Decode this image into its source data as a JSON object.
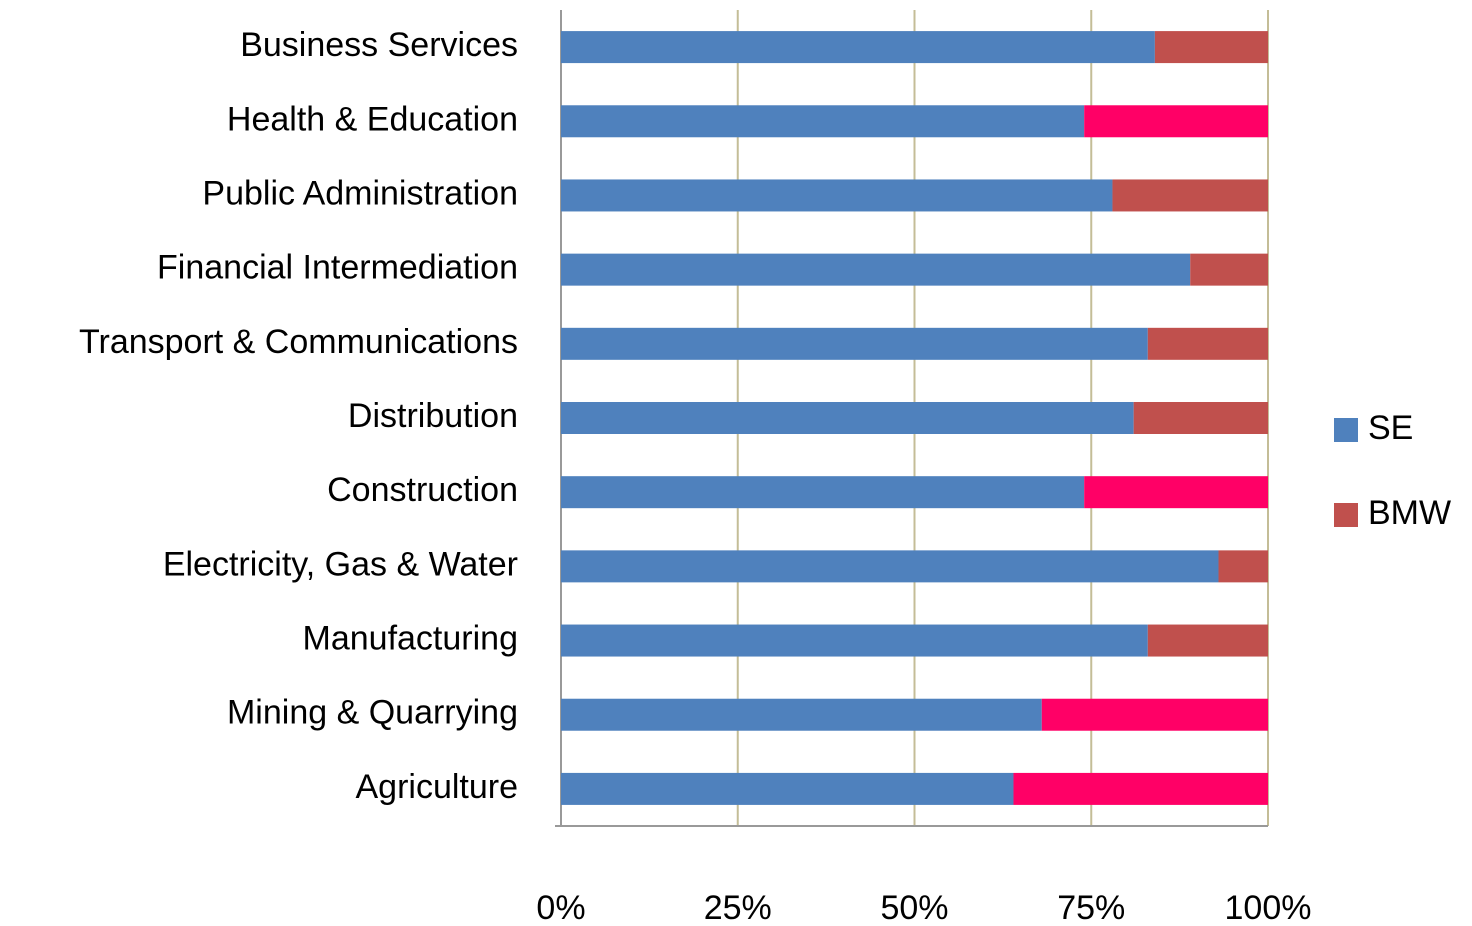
{
  "chart_data": {
    "type": "stacked_barh",
    "categories": [
      "Business Services",
      "Health & Education",
      "Public Administration",
      "Financial Intermediation",
      "Transport & Communications",
      "Distribution",
      "Construction",
      "Electricity, Gas & Water",
      "Manufacturing",
      "Mining & Quarrying",
      "Agriculture"
    ],
    "series": [
      {
        "name": "SE",
        "color": "#4f81bd",
        "values": [
          84,
          74,
          78,
          89,
          83,
          81,
          74,
          93,
          83,
          68,
          64
        ]
      },
      {
        "name": "BMW",
        "color": "#c0504d",
        "values": [
          16,
          26,
          22,
          11,
          17,
          19,
          26,
          7,
          17,
          32,
          36
        ],
        "point_colors": [
          "#c0504d",
          "#ff0066",
          "#c0504d",
          "#c0504d",
          "#c0504d",
          "#c0504d",
          "#ff0066",
          "#c0504d",
          "#c0504d",
          "#ff0066",
          "#ff0066"
        ]
      }
    ],
    "xlim": [
      0,
      100
    ],
    "xticks": [
      {
        "value": 0,
        "label": "0%"
      },
      {
        "value": 25,
        "label": "25%"
      },
      {
        "value": 50,
        "label": "50%"
      },
      {
        "value": 75,
        "label": "75%"
      },
      {
        "value": 100,
        "label": "100%"
      }
    ],
    "grid": true,
    "legend": "right"
  }
}
